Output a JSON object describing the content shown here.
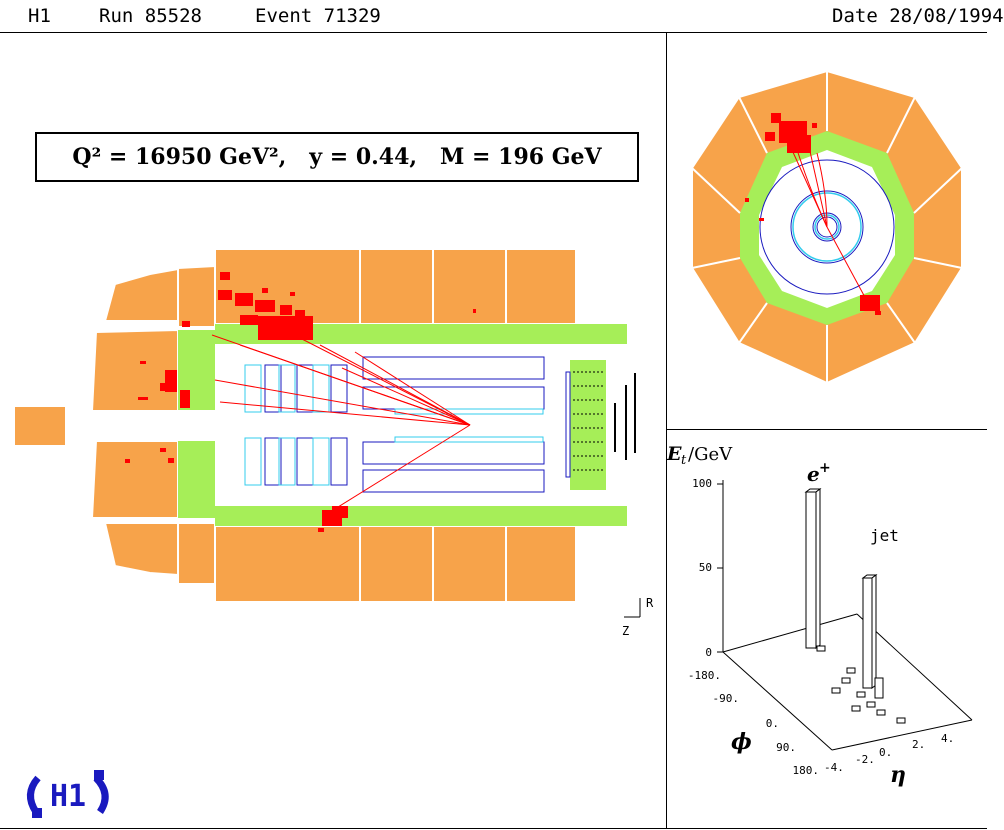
{
  "header": {
    "experiment": "H1",
    "run": "Run 85528",
    "event": "Event 71329",
    "date": "Date 28/08/1994"
  },
  "kinematics": "Q² = 16950 GeV²,   y = 0.44,   M = 196 GeV",
  "side_view": {
    "axis_r": "R",
    "axis_z": "Z"
  },
  "lego": {
    "ylabel_main": "E",
    "ylabel_sub": "t",
    "ylabel_unit": "/GeV",
    "electron_label": "e",
    "electron_charge": "+",
    "jet_label": "jet",
    "z_ticks": [
      "100",
      "50",
      "0"
    ],
    "phi_ticks": [
      "-180.",
      "-90.",
      "0.",
      "90.",
      "180."
    ],
    "eta_ticks": [
      "-4.",
      "-2.",
      "0.",
      "2.",
      "4."
    ],
    "phi_label": "ϕ",
    "eta_label": "η"
  },
  "logo": "H1",
  "colors": {
    "calorimeter": "#F7A34A",
    "em_calorimeter": "#A6EE58",
    "energy_deposit": "#FF0000",
    "tracker": "#1A1ABF",
    "chamber": "#33CCEE",
    "frame": "#000000"
  }
}
